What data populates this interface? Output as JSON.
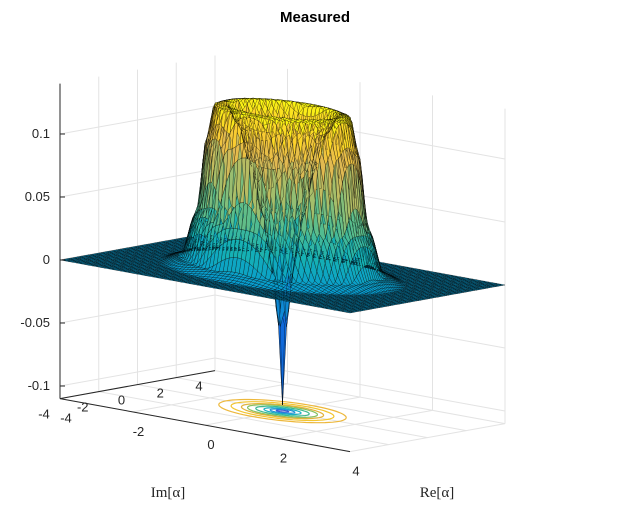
{
  "chart_data": {
    "type": "surface",
    "title": "Measured",
    "xlabel": "Re[α]",
    "ylabel": "Im[α]",
    "zlabel": "",
    "xlim": [
      -4,
      4
    ],
    "ylim": [
      -4,
      4
    ],
    "zlim": [
      -0.11,
      0.14
    ],
    "xticks": [
      "-4",
      "-2",
      "0",
      "2",
      "4"
    ],
    "yticks": [
      "-4",
      "-2",
      "0",
      "2",
      "4"
    ],
    "zticks": [
      "-0.1",
      "-0.05",
      "0",
      "0.05",
      "0.1"
    ],
    "grid": true,
    "colormap": "parula",
    "projected_contours": true,
    "surface": {
      "grid_x": [
        -4,
        -3,
        -2,
        -1.5,
        -1,
        -0.5,
        0,
        0.5,
        1,
        1.5,
        2,
        3,
        4
      ],
      "radial_profile": {
        "r": [
          0,
          0.15,
          0.3,
          0.5,
          0.8,
          1.1,
          1.4,
          1.65,
          1.85,
          2.1,
          2.5,
          3,
          4
        ],
        "z": [
          -0.105,
          -0.03,
          0.01,
          0.045,
          0.085,
          0.115,
          0.13,
          0.128,
          0.1,
          0.04,
          0.005,
          0,
          0
        ]
      },
      "peak_value": 0.13,
      "min_value": -0.105
    }
  }
}
